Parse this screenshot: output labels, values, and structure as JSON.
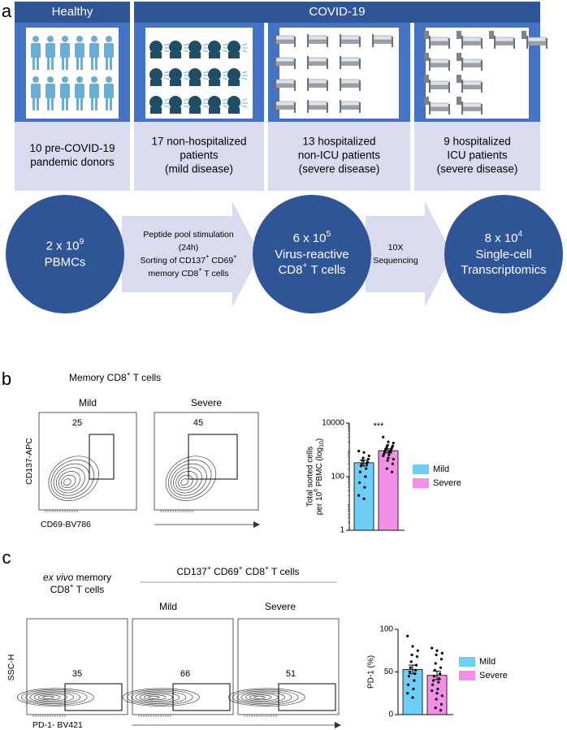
{
  "panel_a": {
    "label": "a",
    "groups": [
      "Healthy",
      "COVID-19"
    ],
    "cohorts": [
      [
        "10 pre-COVID-19",
        "pandemic donors"
      ],
      [
        "17 non-hospitalized",
        "patients",
        "(mild disease)"
      ],
      [
        "13 hospitalized",
        "non-ICU patients",
        "(severe disease)"
      ],
      [
        "9 hospitalized",
        "ICU patients",
        "(severe disease)"
      ]
    ],
    "workflow": {
      "steps": [
        {
          "count": [
            "2 x 10",
            {
              "sup": "9"
            }
          ],
          "lines": [
            "PBMCs"
          ]
        },
        {
          "count": [
            "6 x 10",
            {
              "sup": "5"
            }
          ],
          "lines": [
            "Virus-reactive",
            [
              "CD8",
              {
                "sup": "+"
              },
              " T cells"
            ]
          ]
        },
        {
          "count": [
            "8 x 10",
            {
              "sup": "4"
            }
          ],
          "lines": [
            "Single-cell",
            "Transcriptomics"
          ]
        }
      ],
      "arrows": [
        [
          "Peptide pool stimulation",
          "(24h)",
          [
            "Sorting of CD137",
            {
              "sup": "+"
            },
            " CD69",
            {
              "sup": "+"
            }
          ],
          [
            "memory CD8",
            {
              "sup": "+"
            },
            " T cells"
          ]
        ],
        [
          "10X",
          "Sequencing"
        ]
      ]
    }
  },
  "panel_b": {
    "label": "b",
    "title": [
      "Memory CD8",
      {
        "sup": "+"
      },
      " T cells"
    ],
    "flow": {
      "conditions": [
        "Mild",
        "Severe"
      ],
      "gates": [
        25,
        45
      ],
      "ylabel": "CD137-APC",
      "xlabel": "CD69-BV786"
    },
    "chart": {
      "type": "bar",
      "categories": [
        "Mild",
        "Severe"
      ],
      "colors": [
        "#6dcff6",
        "#f48fe8"
      ],
      "values": [
        330,
        930
      ],
      "errors": [
        80,
        160
      ],
      "points": [
        [
          900,
          800,
          600,
          500,
          450,
          400,
          350,
          300,
          300,
          250,
          200,
          150,
          100,
          60,
          40,
          20,
          15
        ],
        [
          3000,
          2000,
          1800,
          1500,
          1400,
          1300,
          1200,
          1100,
          1000,
          950,
          900,
          850,
          800,
          700,
          650,
          600,
          500,
          450,
          400,
          300,
          200,
          150
        ]
      ],
      "ylim": [
        1,
        10000
      ],
      "yticks": [
        1,
        100,
        10000
      ],
      "log": true,
      "ylabel": [
        "Total sorted cells",
        [
          "per 10",
          {
            "sup": "6"
          },
          " PBMC (log",
          {
            "sub": "10"
          },
          ")"
        ]
      ],
      "annotation": "***"
    }
  },
  "panel_c": {
    "label": "c",
    "header": [
      "CD137",
      {
        "sup": "+"
      },
      " CD69",
      {
        "sup": "+"
      },
      " CD8",
      {
        "sup": "+"
      },
      " T cells"
    ],
    "reference": [
      [
        {
          "i": "ex vivo"
        },
        " memory"
      ],
      [
        "CD8",
        {
          "sup": "+"
        },
        " T cells"
      ]
    ],
    "flow": {
      "conditions": [
        "Mild",
        "Severe"
      ],
      "gates": [
        35,
        66,
        51
      ],
      "ylabel": "SSC-H",
      "xlabel": "PD-1- BV421"
    },
    "chart": {
      "type": "bar",
      "categories": [
        "Mild",
        "Severe"
      ],
      "colors": [
        "#6dcff6",
        "#f48fe8"
      ],
      "values": [
        53,
        46
      ],
      "errors": [
        5,
        5
      ],
      "points": [
        [
          92,
          80,
          75,
          70,
          68,
          62,
          58,
          55,
          52,
          50,
          48,
          45,
          40,
          35,
          30,
          25,
          20
        ],
        [
          78,
          75,
          72,
          70,
          65,
          60,
          55,
          52,
          48,
          45,
          42,
          40,
          38,
          35,
          30,
          28,
          25,
          22,
          18,
          12,
          8,
          5
        ]
      ],
      "ylim": [
        0,
        100
      ],
      "yticks": [
        0,
        50,
        100
      ],
      "log": false,
      "ylabel": [
        "PD-1 (%)"
      ]
    }
  }
}
